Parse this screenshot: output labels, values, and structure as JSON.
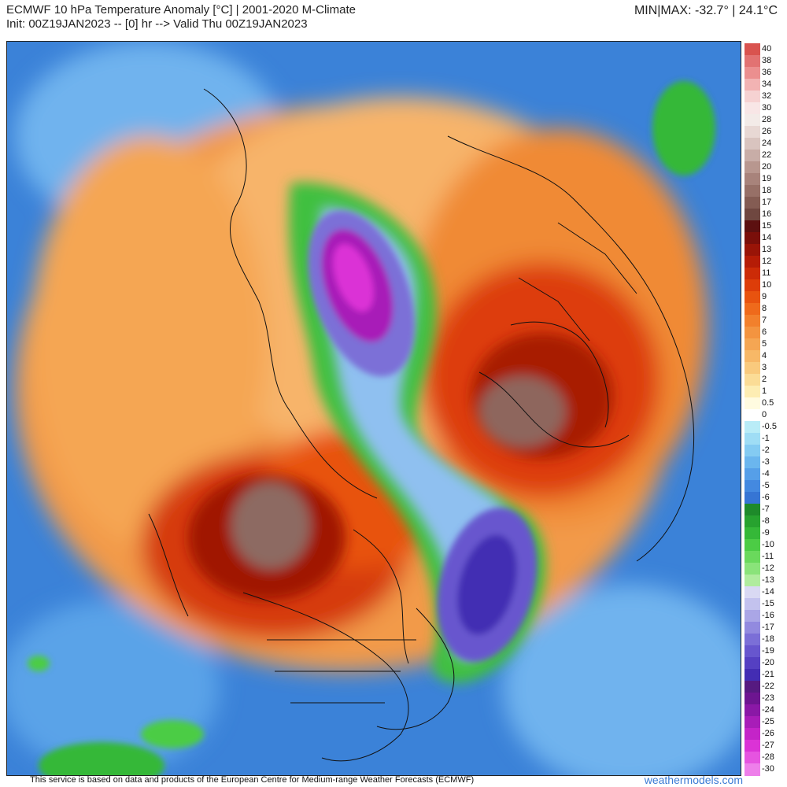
{
  "header": {
    "title": "ECMWF 10 hPa Temperature Anomaly [°C] | 2001-2020 M-Climate",
    "init_line": "Init: 00Z19JAN2023 -- [0] hr --> Valid Thu 00Z19JAN2023",
    "minmax": "MIN|MAX: -32.7° | 24.1°C"
  },
  "footer": {
    "credit": "This service is based on data and products of the European Centre for Medium-range Weather Forecasts (ECMWF)",
    "brand": "weathermodels.com"
  },
  "legend": {
    "levels": [
      {
        "label": "40",
        "color": "#d9534f"
      },
      {
        "label": "38",
        "color": "#e27272"
      },
      {
        "label": "36",
        "color": "#eb8f8f"
      },
      {
        "label": "34",
        "color": "#f2b3b3"
      },
      {
        "label": "32",
        "color": "#f6d2d2"
      },
      {
        "label": "30",
        "color": "#f8e6e6"
      },
      {
        "label": "28",
        "color": "#f3ebe8"
      },
      {
        "label": "26",
        "color": "#e8d8d4"
      },
      {
        "label": "24",
        "color": "#d9c4bf"
      },
      {
        "label": "22",
        "color": "#c8ada7"
      },
      {
        "label": "20",
        "color": "#b8978f"
      },
      {
        "label": "19",
        "color": "#a8837b"
      },
      {
        "label": "18",
        "color": "#977067"
      },
      {
        "label": "17",
        "color": "#845c53"
      },
      {
        "label": "16",
        "color": "#6f4740"
      },
      {
        "label": "15",
        "color": "#5c1010"
      },
      {
        "label": "14",
        "color": "#7a0f0a"
      },
      {
        "label": "13",
        "color": "#991407"
      },
      {
        "label": "12",
        "color": "#b51c06"
      },
      {
        "label": "11",
        "color": "#cc2b07"
      },
      {
        "label": "10",
        "color": "#dd3d09"
      },
      {
        "label": "9",
        "color": "#e8530f"
      },
      {
        "label": "8",
        "color": "#ef6a1b"
      },
      {
        "label": "7",
        "color": "#f2802c"
      },
      {
        "label": "6",
        "color": "#f39440"
      },
      {
        "label": "5",
        "color": "#f5a653"
      },
      {
        "label": "4",
        "color": "#f7b867"
      },
      {
        "label": "3",
        "color": "#f9ca7d"
      },
      {
        "label": "2",
        "color": "#fbdc96"
      },
      {
        "label": "1",
        "color": "#fdedb3"
      },
      {
        "label": "0.5",
        "color": "#fffbe0"
      },
      {
        "label": "0",
        "color": "#ffffff"
      },
      {
        "label": "-0.5",
        "color": "#b9ecf7"
      },
      {
        "label": "-1",
        "color": "#9fddf5"
      },
      {
        "label": "-2",
        "color": "#84cbf2"
      },
      {
        "label": "-3",
        "color": "#6bb6ee"
      },
      {
        "label": "-4",
        "color": "#569fe8"
      },
      {
        "label": "-5",
        "color": "#4489e0"
      },
      {
        "label": "-6",
        "color": "#3675d4"
      },
      {
        "label": "-7",
        "color": "#1e8a2a"
      },
      {
        "label": "-8",
        "color": "#27a22f"
      },
      {
        "label": "-9",
        "color": "#35b838"
      },
      {
        "label": "-10",
        "color": "#4ccc45"
      },
      {
        "label": "-11",
        "color": "#6ad95c"
      },
      {
        "label": "-12",
        "color": "#8ae37a"
      },
      {
        "label": "-13",
        "color": "#b0ec9e"
      },
      {
        "label": "-14",
        "color": "#d9d9f3"
      },
      {
        "label": "-15",
        "color": "#c3c2ee"
      },
      {
        "label": "-16",
        "color": "#aaa6e6"
      },
      {
        "label": "-17",
        "color": "#928adf"
      },
      {
        "label": "-18",
        "color": "#7b6fd7"
      },
      {
        "label": "-19",
        "color": "#6756ce"
      },
      {
        "label": "-20",
        "color": "#5540c2"
      },
      {
        "label": "-21",
        "color": "#432db3"
      },
      {
        "label": "-22",
        "color": "#561a80"
      },
      {
        "label": "-23",
        "color": "#6d1590"
      },
      {
        "label": "-24",
        "color": "#8a18a6"
      },
      {
        "label": "-25",
        "color": "#a81db8"
      },
      {
        "label": "-26",
        "color": "#c424c8"
      },
      {
        "label": "-27",
        "color": "#db33d6"
      },
      {
        "label": "-28",
        "color": "#e654e0"
      },
      {
        "label": "-30",
        "color": "#ee7fea"
      }
    ]
  }
}
